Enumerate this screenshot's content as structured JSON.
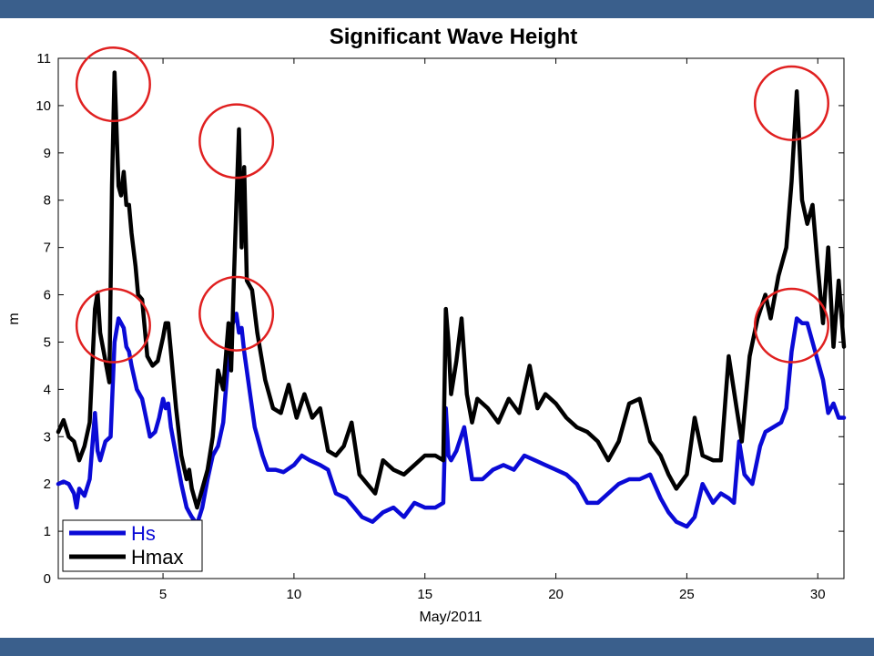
{
  "colors": {
    "band": "#3a5f8c",
    "hs": "#0a0ad6",
    "hmax": "#000000",
    "highlight": "#e02020"
  },
  "chart_data": {
    "type": "line",
    "title": "Significant Wave Height",
    "xlabel": "May/2011",
    "ylabel": "m",
    "xlim": [
      1,
      31
    ],
    "ylim": [
      0,
      11
    ],
    "xticks": [
      5,
      10,
      15,
      20,
      25,
      30
    ],
    "yticks": [
      0,
      1,
      2,
      3,
      4,
      5,
      6,
      7,
      8,
      9,
      10,
      11
    ],
    "grid": false,
    "legend": "bottom-left",
    "series": [
      {
        "name": "Hs",
        "color": "#0a0ad6",
        "x": [
          1,
          1.2,
          1.4,
          1.6,
          1.7,
          1.8,
          2.0,
          2.2,
          2.4,
          2.5,
          2.6,
          2.8,
          3.0,
          3.15,
          3.3,
          3.5,
          3.6,
          3.7,
          3.8,
          4.0,
          4.2,
          4.5,
          4.7,
          4.85,
          5.0,
          5.1,
          5.2,
          5.3,
          5.5,
          5.7,
          5.9,
          6.0,
          6.1,
          6.3,
          6.5,
          6.7,
          6.9,
          7.1,
          7.3,
          7.5,
          7.6,
          7.8,
          7.9,
          8.0,
          8.1,
          8.3,
          8.5,
          8.8,
          9.0,
          9.3,
          9.6,
          10.0,
          10.3,
          10.6,
          11.0,
          11.3,
          11.6,
          12.0,
          12.3,
          12.6,
          13.0,
          13.4,
          13.8,
          14.2,
          14.6,
          15.0,
          15.4,
          15.7,
          15.8,
          15.9,
          16.0,
          16.2,
          16.5,
          16.8,
          17.2,
          17.6,
          18.0,
          18.4,
          18.8,
          19.2,
          19.6,
          20.0,
          20.4,
          20.8,
          21.2,
          21.6,
          22.0,
          22.4,
          22.8,
          23.2,
          23.6,
          24.0,
          24.3,
          24.6,
          25.0,
          25.3,
          25.6,
          26.0,
          26.3,
          26.6,
          26.8,
          27.0,
          27.2,
          27.5,
          27.8,
          28.0,
          28.3,
          28.6,
          28.8,
          29.0,
          29.2,
          29.4,
          29.6,
          29.8,
          30.0,
          30.2,
          30.4,
          30.6,
          30.8,
          31.0
        ],
        "values": [
          2.0,
          2.05,
          2.0,
          1.8,
          1.5,
          1.9,
          1.75,
          2.1,
          3.5,
          2.7,
          2.5,
          2.9,
          3.0,
          5.0,
          5.5,
          5.3,
          4.9,
          4.8,
          4.5,
          4.0,
          3.8,
          3.0,
          3.1,
          3.4,
          3.8,
          3.6,
          3.7,
          3.2,
          2.6,
          2.0,
          1.5,
          1.4,
          1.3,
          1.15,
          1.5,
          2.1,
          2.6,
          2.8,
          3.3,
          4.7,
          5.3,
          5.6,
          5.2,
          5.3,
          4.8,
          4.0,
          3.2,
          2.6,
          2.3,
          2.3,
          2.25,
          2.4,
          2.6,
          2.5,
          2.4,
          2.3,
          1.8,
          1.7,
          1.5,
          1.3,
          1.2,
          1.4,
          1.5,
          1.3,
          1.6,
          1.5,
          1.5,
          1.6,
          3.6,
          2.6,
          2.5,
          2.7,
          3.2,
          2.1,
          2.1,
          2.3,
          2.4,
          2.3,
          2.6,
          2.5,
          2.4,
          2.3,
          2.2,
          2.0,
          1.6,
          1.6,
          1.8,
          2.0,
          2.1,
          2.1,
          2.2,
          1.7,
          1.4,
          1.2,
          1.1,
          1.3,
          2.0,
          1.6,
          1.8,
          1.7,
          1.6,
          2.9,
          2.2,
          2.0,
          2.8,
          3.1,
          3.2,
          3.3,
          3.6,
          4.8,
          5.5,
          5.4,
          5.4,
          5.0,
          4.6,
          4.2,
          3.5,
          3.7,
          3.4,
          3.4
        ]
      },
      {
        "name": "Hmax",
        "color": "#000000",
        "x": [
          1,
          1.2,
          1.4,
          1.6,
          1.8,
          2.0,
          2.2,
          2.4,
          2.5,
          2.6,
          2.8,
          2.95,
          3.05,
          3.15,
          3.3,
          3.4,
          3.5,
          3.6,
          3.7,
          3.8,
          3.95,
          4.05,
          4.2,
          4.4,
          4.6,
          4.8,
          5.0,
          5.1,
          5.2,
          5.3,
          5.5,
          5.7,
          5.9,
          6.0,
          6.1,
          6.3,
          6.5,
          6.7,
          6.9,
          7.1,
          7.3,
          7.5,
          7.6,
          7.7,
          7.8,
          7.9,
          8.0,
          8.1,
          8.2,
          8.4,
          8.6,
          8.9,
          9.2,
          9.5,
          9.8,
          10.1,
          10.4,
          10.7,
          11.0,
          11.3,
          11.6,
          11.9,
          12.2,
          12.5,
          12.8,
          13.1,
          13.4,
          13.8,
          14.2,
          14.6,
          15.0,
          15.4,
          15.7,
          15.8,
          15.9,
          16.0,
          16.2,
          16.4,
          16.6,
          16.8,
          17.0,
          17.4,
          17.8,
          18.2,
          18.6,
          19.0,
          19.3,
          19.6,
          20.0,
          20.4,
          20.8,
          21.2,
          21.6,
          22.0,
          22.4,
          22.8,
          23.2,
          23.6,
          24.0,
          24.3,
          24.6,
          25.0,
          25.3,
          25.6,
          26.0,
          26.3,
          26.6,
          26.9,
          27.1,
          27.4,
          27.7,
          28.0,
          28.2,
          28.5,
          28.8,
          29.0,
          29.2,
          29.4,
          29.6,
          29.8,
          30.0,
          30.2,
          30.4,
          30.6,
          30.8,
          31.0
        ],
        "values": [
          3.1,
          3.35,
          3.0,
          2.9,
          2.5,
          2.8,
          3.3,
          5.7,
          6.05,
          5.2,
          4.6,
          4.15,
          8.3,
          10.7,
          8.3,
          8.1,
          8.6,
          7.9,
          7.9,
          7.3,
          6.6,
          6.0,
          5.9,
          4.7,
          4.5,
          4.6,
          5.1,
          5.4,
          5.4,
          4.8,
          3.6,
          2.6,
          2.1,
          2.3,
          1.9,
          1.5,
          1.9,
          2.3,
          3.0,
          4.4,
          4.0,
          5.4,
          4.4,
          6.2,
          7.9,
          9.5,
          7.0,
          8.7,
          6.3,
          6.1,
          5.2,
          4.2,
          3.6,
          3.5,
          4.1,
          3.4,
          3.9,
          3.4,
          3.6,
          2.7,
          2.6,
          2.8,
          3.3,
          2.2,
          2.0,
          1.8,
          2.5,
          2.3,
          2.2,
          2.4,
          2.6,
          2.6,
          2.5,
          5.7,
          5.0,
          3.9,
          4.6,
          5.5,
          3.9,
          3.3,
          3.8,
          3.6,
          3.3,
          3.8,
          3.5,
          4.5,
          3.6,
          3.9,
          3.7,
          3.4,
          3.2,
          3.1,
          2.9,
          2.5,
          2.9,
          3.7,
          3.8,
          2.9,
          2.6,
          2.2,
          1.9,
          2.2,
          3.4,
          2.6,
          2.5,
          2.5,
          4.7,
          3.6,
          2.9,
          4.7,
          5.5,
          6.0,
          5.5,
          6.4,
          7.0,
          8.4,
          10.3,
          8.0,
          7.5,
          7.9,
          6.6,
          5.4,
          7.0,
          4.9,
          6.3,
          4.9
        ]
      }
    ],
    "highlight_circles": [
      {
        "x": 3.1,
        "y": 10.45,
        "r_data_x": 1.4
      },
      {
        "x": 3.1,
        "y": 5.35,
        "r_data_x": 1.4
      },
      {
        "x": 7.8,
        "y": 9.25,
        "r_data_x": 1.4
      },
      {
        "x": 7.8,
        "y": 5.6,
        "r_data_x": 1.4
      },
      {
        "x": 29.0,
        "y": 10.05,
        "r_data_x": 1.4
      },
      {
        "x": 29.0,
        "y": 5.35,
        "r_data_x": 1.4
      }
    ]
  }
}
